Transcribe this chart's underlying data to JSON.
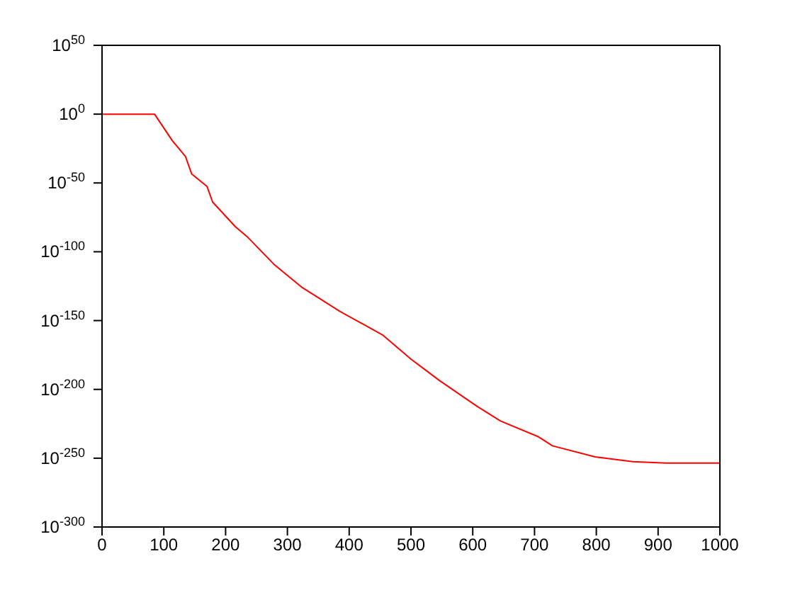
{
  "chart_data": {
    "type": "line",
    "log": true,
    "marker": "none",
    "line_style": "solid",
    "grid": false,
    "x": [
      0,
      85,
      114,
      135,
      145,
      170,
      179,
      216,
      236,
      278,
      324,
      385,
      454,
      500,
      546,
      607,
      645,
      706,
      729,
      798,
      859,
      913,
      1000
    ],
    "series": [
      {
        "color": "#ff0000",
        "values": [
          1,
          1,
          4e-20,
          2e-31,
          4e-44,
          2.5e-53,
          1.3e-64,
          1.3e-82,
          3e-90,
          1e-109,
          1e-126,
          5e-144,
          4e-161,
          1e-178,
          3e-194,
          5e-213,
          1e-223,
          4e-235,
          1e-241,
          1e-249,
          3e-253,
          3e-254,
          3e-254
        ]
      }
    ],
    "xlim": [
      0,
      1000
    ],
    "xticks": [
      0,
      100,
      200,
      300,
      400,
      500,
      600,
      700,
      800,
      900,
      1000
    ],
    "ylim": [
      1e-300,
      1e+50
    ],
    "yticks": [
      {
        "value": 1e-300,
        "label": "10$^{-300}$"
      },
      {
        "value": 1e-250,
        "label": "10$^{-250}$"
      },
      {
        "value": 1e-200,
        "label": "10$^{-200}$"
      },
      {
        "value": 1e-150,
        "label": "10$^{-150}$"
      },
      {
        "value": 1e-100,
        "label": "10$^{-100}$"
      },
      {
        "value": 1e-50,
        "label": "10$^{-50}$"
      },
      {
        "value": 1,
        "label": "10$^{0}$"
      },
      {
        "value": 1e+50,
        "label": "10$^{50}$"
      }
    ]
  }
}
